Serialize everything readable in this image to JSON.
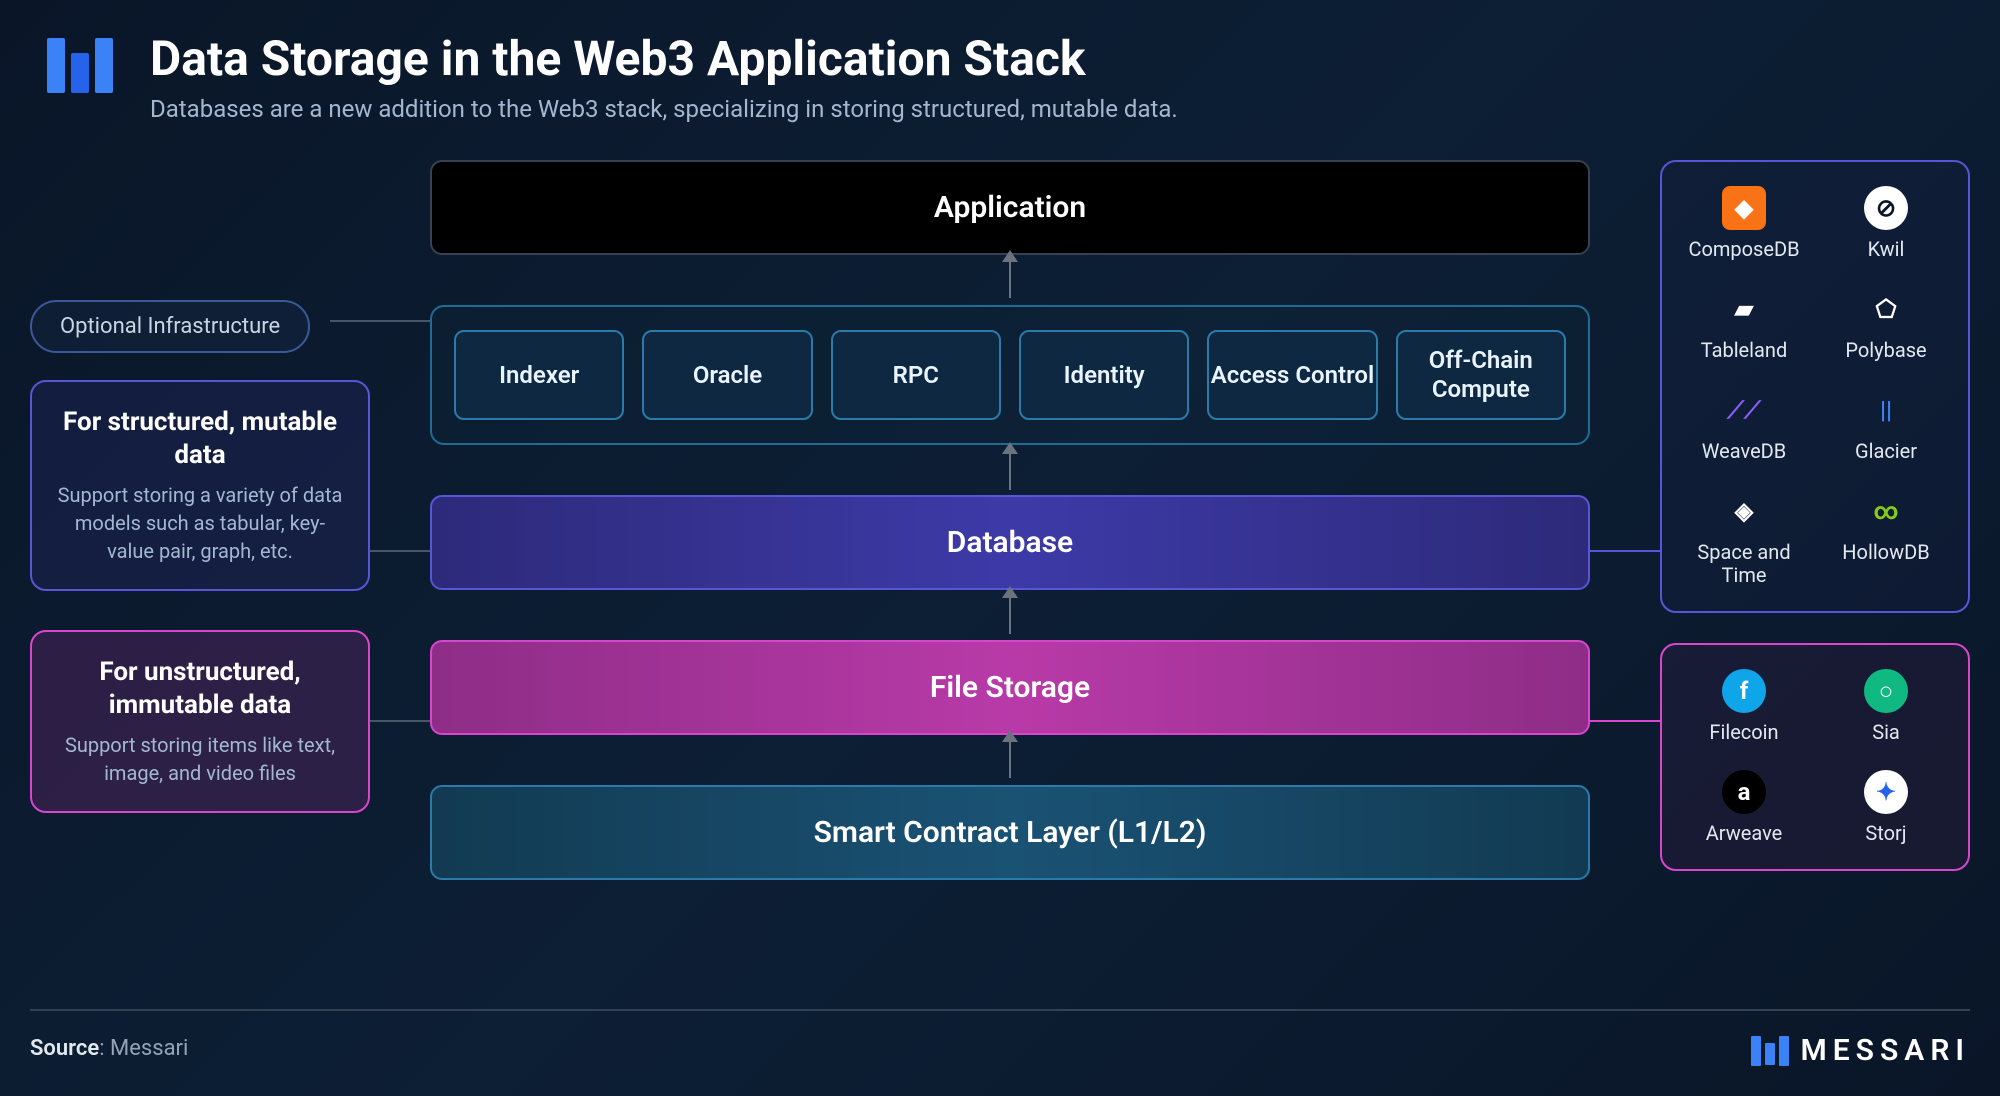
{
  "header": {
    "title": "Data Storage in the Web3 Application Stack",
    "subtitle": "Databases are a new addition to the Web3 stack, specializing in storing structured, mutable data."
  },
  "layers": {
    "application": "Application",
    "database": "Database",
    "filestorage": "File Storage",
    "smartcontract": "Smart Contract Layer (L1/L2)"
  },
  "infra_label": "Optional Infrastructure",
  "infra_items": [
    "Indexer",
    "Oracle",
    "RPC",
    "Identity",
    "Access Control",
    "Off-Chain Compute"
  ],
  "left_cards": {
    "db": {
      "title": "For structured, mutable data",
      "body": "Support storing a variety of data models such as tabular, key-value pair, graph, etc."
    },
    "fs": {
      "title": "For unstructured, immutable data",
      "body": "Support storing items like text, image, and video files"
    }
  },
  "db_providers": [
    {
      "label": "ComposeDB",
      "glyph": "◆",
      "bg": "#f97316",
      "fg": "#fff",
      "round": "8px"
    },
    {
      "label": "Kwil",
      "glyph": "⊘",
      "bg": "#fff",
      "fg": "#0a1628",
      "round": "50%"
    },
    {
      "label": "Tableland",
      "glyph": "▰",
      "bg": "transparent",
      "fg": "#fff",
      "round": "0"
    },
    {
      "label": "Polybase",
      "glyph": "⬠",
      "bg": "transparent",
      "fg": "#fff",
      "round": "0"
    },
    {
      "label": "WeaveDB",
      "glyph": "⟋⟋",
      "bg": "transparent",
      "fg": "#8b5cf6",
      "round": "0"
    },
    {
      "label": "Glacier",
      "glyph": "||",
      "bg": "transparent",
      "fg": "#3b82f6",
      "round": "0"
    },
    {
      "label": "Space and Time",
      "glyph": "◈",
      "bg": "transparent",
      "fg": "#fff",
      "round": "0"
    },
    {
      "label": "HollowDB",
      "glyph": "∞",
      "bg": "transparent",
      "fg": "#84cc16",
      "round": "0"
    }
  ],
  "fs_providers": [
    {
      "label": "Filecoin",
      "glyph": "f",
      "bg": "#0ea5e9",
      "fg": "#fff",
      "round": "50%"
    },
    {
      "label": "Sia",
      "glyph": "○",
      "bg": "#10b981",
      "fg": "#fff",
      "round": "50%"
    },
    {
      "label": "Arweave",
      "glyph": "a",
      "bg": "#000",
      "fg": "#fff",
      "round": "50%"
    },
    {
      "label": "Storj",
      "glyph": "✦",
      "bg": "#fff",
      "fg": "#2563eb",
      "round": "50%"
    }
  ],
  "footer": {
    "source_prefix": "Source",
    "source_value": "Messari",
    "brand": "MESSARI"
  },
  "colors": {
    "bg_start": "#0a1628",
    "accent_blue": "#3b82f6",
    "db_border": "#5856d6",
    "fs_border": "#d946ce",
    "infra_border": "#2a7aaa"
  }
}
